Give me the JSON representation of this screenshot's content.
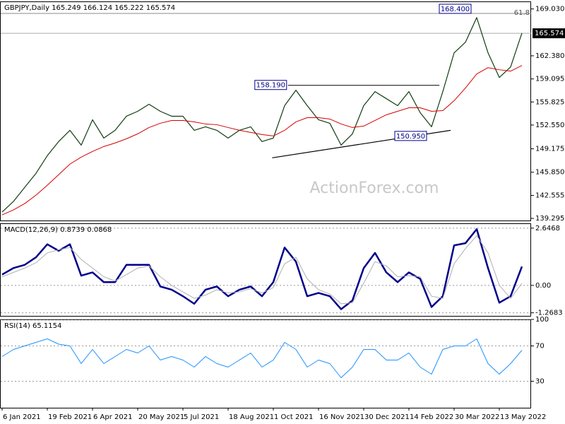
{
  "chart_data": [
    {
      "type": "line",
      "title": "GBPJPY,Daily  165.249 166.124 165.222 165.574",
      "watermark": "ActionForex.com",
      "series": [
        {
          "color": "#123d12",
          "width": 1.2,
          "values": [
            140.2,
            141.7,
            143.7,
            145.7,
            148.2,
            150.2,
            151.8,
            149.7,
            153.3,
            150.7,
            151.8,
            153.8,
            154.5,
            155.5,
            154.5,
            153.8,
            153.8,
            151.8,
            152.3,
            151.8,
            150.7,
            151.8,
            152.3,
            150.2,
            150.7,
            155.3,
            157.5,
            155.3,
            153.3,
            152.8,
            149.7,
            151.3,
            155.3,
            157.3,
            156.3,
            155.3,
            157.3,
            154.3,
            152.3,
            157.3,
            162.8,
            164.3,
            167.8,
            162.8,
            159.3,
            160.8,
            165.6
          ]
        },
        {
          "color": "#d40000",
          "width": 1,
          "values": [
            139.8,
            140.5,
            141.4,
            142.6,
            144.0,
            145.5,
            147.0,
            148.0,
            148.8,
            149.5,
            150.0,
            150.6,
            151.3,
            152.2,
            152.8,
            153.2,
            153.2,
            153.0,
            152.7,
            152.6,
            152.2,
            151.8,
            151.5,
            151.2,
            151.0,
            151.8,
            153.0,
            153.6,
            153.6,
            153.4,
            152.7,
            152.2,
            152.4,
            153.2,
            154.0,
            154.5,
            155.0,
            155.0,
            154.5,
            154.6,
            156.0,
            157.8,
            159.8,
            160.7,
            160.4,
            160.2,
            161.0
          ]
        }
      ],
      "ylim": [
        139.0,
        170.1
      ],
      "yticks": [
        {
          "value": 169.03,
          "label": "169.030"
        },
        {
          "value": 162.38,
          "label": "162.380"
        },
        159.095,
        155.825,
        {
          "value": 152.55,
          "label": "152.550"
        },
        149.175,
        {
          "value": 145.85,
          "label": "145.850"
        },
        142.555,
        139.295
      ],
      "last_price": 165.574,
      "fib_label": "61.8",
      "annotations": [
        {
          "label": "168.400",
          "value": 168.4
        },
        {
          "label": "158.190",
          "value": 158.19,
          "x": [
            25.3,
            38.7
          ]
        },
        {
          "label": "150.950",
          "value": 150.95
        }
      ],
      "trendline": {
        "x": [
          23.9,
          39.7
        ],
        "y": [
          147.9,
          151.8
        ]
      }
    },
    {
      "type": "line",
      "title": "MACD(12,26,9) 0.8739 0.0868",
      "series": [
        {
          "color": "#00008b",
          "width": 2.5,
          "values": [
            0.5,
            0.8,
            0.95,
            1.3,
            1.9,
            1.6,
            1.9,
            0.45,
            0.6,
            0.15,
            0.15,
            0.95,
            0.95,
            0.95,
            -0.05,
            -0.2,
            -0.5,
            -0.85,
            -0.2,
            -0.05,
            -0.5,
            -0.2,
            -0.05,
            -0.5,
            0.15,
            1.75,
            1.1,
            -0.5,
            -0.35,
            -0.5,
            -1.1,
            -0.7,
            0.8,
            1.5,
            0.6,
            0.15,
            0.6,
            0.3,
            -1.0,
            -0.5,
            1.85,
            1.95,
            2.6,
            0.8,
            -0.8,
            -0.5,
            0.87
          ]
        },
        {
          "color": "#b0b0b0",
          "width": 1,
          "values": [
            0.4,
            0.6,
            0.8,
            1.05,
            1.5,
            1.65,
            1.75,
            1.2,
            0.8,
            0.4,
            0.2,
            0.5,
            0.8,
            0.9,
            0.4,
            0.0,
            -0.3,
            -0.6,
            -0.45,
            -0.2,
            -0.35,
            -0.3,
            -0.15,
            -0.35,
            -0.1,
            1.0,
            1.3,
            0.3,
            -0.2,
            -0.4,
            -0.85,
            -0.8,
            0.1,
            1.1,
            0.9,
            0.4,
            0.45,
            0.4,
            -0.5,
            -0.6,
            1.0,
            1.7,
            2.3,
            1.5,
            0.0,
            -0.6,
            0.09
          ]
        }
      ],
      "ylim": [
        -1.41,
        2.87
      ],
      "yticks": [
        2.6468,
        {
          "value": 0,
          "label": "0.00"
        },
        -1.2683
      ],
      "grid": true
    },
    {
      "type": "line",
      "title": "RSI(14) 65.1154",
      "categories": [
        "6 Jan 2021",
        null,
        null,
        null,
        "19 Feb 2021",
        null,
        null,
        null,
        "6 Apr 2021",
        null,
        null,
        null,
        "20 May 2021",
        null,
        null,
        null,
        "5 Jul 2021",
        null,
        null,
        null,
        "18 Aug 2021",
        null,
        null,
        null,
        "1 Oct 2021",
        null,
        null,
        null,
        "16 Nov 2021",
        null,
        null,
        null,
        "30 Dec 2021",
        null,
        null,
        null,
        "14 Feb 2022",
        null,
        null,
        null,
        "30 Mar 2022",
        null,
        null,
        null,
        "13 May 2022",
        null,
        null
      ],
      "series": [
        {
          "color": "#1e90ff",
          "width": 1,
          "values": [
            58,
            66,
            70,
            74,
            78,
            72,
            70,
            50,
            66,
            50,
            58,
            66,
            62,
            70,
            54,
            58,
            54,
            46,
            58,
            50,
            46,
            54,
            62,
            46,
            54,
            74,
            66,
            46,
            54,
            50,
            34,
            46,
            66,
            66,
            54,
            54,
            62,
            46,
            38,
            66,
            70,
            70,
            78,
            50,
            38,
            50,
            65.1
          ]
        }
      ],
      "ylim": [
        0,
        100
      ],
      "yticks": [
        100,
        70,
        30
      ],
      "grid": true
    }
  ]
}
